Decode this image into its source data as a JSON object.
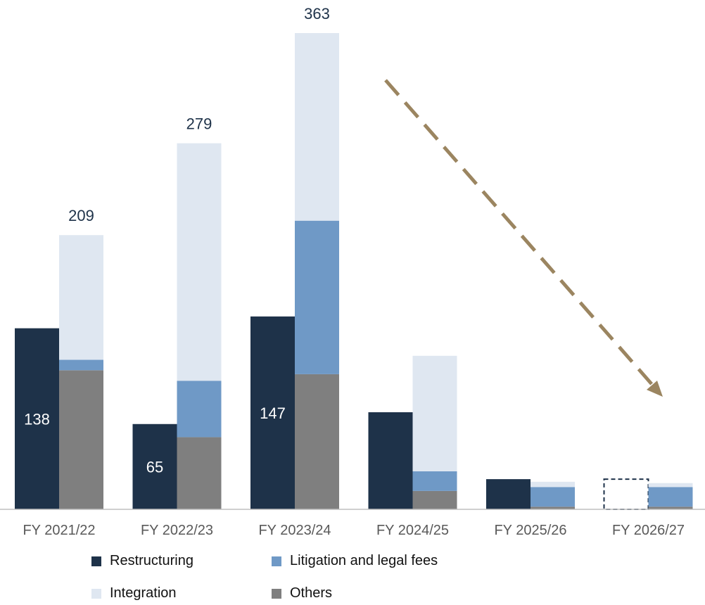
{
  "chart_data": {
    "type": "bar",
    "categories": [
      "FY 2021/22",
      "FY 2022/23",
      "FY 2023/24",
      "FY 2024/25",
      "FY 2025/26",
      "FY 2026/27"
    ],
    "ylim": [
      0,
      370
    ],
    "restructuring": [
      138,
      65,
      147,
      74,
      23,
      23
    ],
    "restructuring_estimated": [
      false,
      false,
      false,
      false,
      false,
      true
    ],
    "restructuring_labels": [
      "138",
      "65",
      "147",
      "",
      "",
      ""
    ],
    "stack_series": [
      {
        "name": "Others",
        "values": [
          106,
          55,
          103,
          14,
          2,
          2
        ]
      },
      {
        "name": "Litigation and legal fees",
        "values": [
          8,
          43,
          117,
          15,
          15,
          15
        ]
      },
      {
        "name": "Integration",
        "values": [
          95,
          181,
          143,
          88,
          4,
          3
        ]
      }
    ],
    "totals": [
      209,
      279,
      363,
      null,
      null,
      null
    ],
    "total_labels": [
      "209",
      "279",
      "363",
      "",
      "",
      ""
    ],
    "trend_arrow": "downward dashed arrow from FY 2023/24 to FY 2026/27",
    "legend": [
      {
        "name": "Restructuring",
        "color": "#1e3249"
      },
      {
        "name": "Litigation and legal fees",
        "color": "#6f99c6"
      },
      {
        "name": "Integration",
        "color": "#dfe7f1"
      },
      {
        "name": "Others",
        "color": "#7f7f7f"
      }
    ],
    "colors": {
      "restructuring": "#1e3249",
      "Litigation and legal fees": "#6f99c6",
      "Integration": "#dfe7f1",
      "Others": "#7f7f7f",
      "arrow": "#9b8560",
      "axis": "#bfbfbf"
    },
    "grid": false
  }
}
